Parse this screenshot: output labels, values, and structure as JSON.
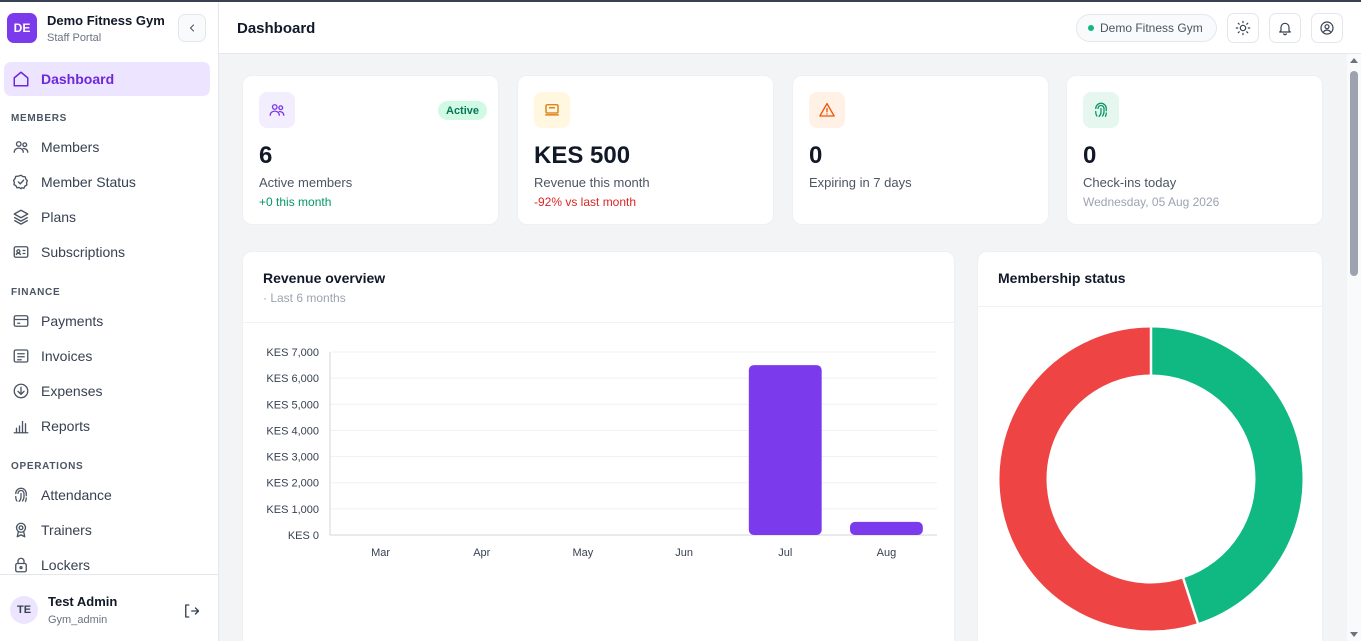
{
  "brand": {
    "initials": "DE",
    "name": "Demo Fitness Gym",
    "subtitle": "Staff Portal"
  },
  "nav": {
    "dashboard": "Dashboard",
    "sections": {
      "members": "MEMBERS",
      "finance": "FINANCE",
      "operations": "OPERATIONS"
    },
    "members_items": [
      "Members",
      "Member Status",
      "Plans",
      "Subscriptions"
    ],
    "finance_items": [
      "Payments",
      "Invoices",
      "Expenses",
      "Reports"
    ],
    "operations_items": [
      "Attendance",
      "Trainers",
      "Lockers"
    ]
  },
  "user": {
    "initials": "TE",
    "name": "Test Admin",
    "role": "Gym_admin"
  },
  "header": {
    "title": "Dashboard",
    "gym": "Demo Fitness Gym"
  },
  "stats": [
    {
      "value": "6",
      "label": "Active members",
      "sub": "+0 this month",
      "badge": "Active"
    },
    {
      "value": "KES 500",
      "label": "Revenue this month",
      "sub": "-92% vs last month"
    },
    {
      "value": "0",
      "label": "Expiring in 7 days"
    },
    {
      "value": "0",
      "label": "Check-ins today",
      "sub": "Wednesday, 05 Aug 2026"
    }
  ],
  "revenue_panel": {
    "title": "Revenue overview",
    "subtitle": "· Last 6 months"
  },
  "membership_panel": {
    "title": "Membership status"
  },
  "colors": {
    "accent": "#7c3aed",
    "success": "#10b981",
    "danger": "#ef4444"
  },
  "chart_data": [
    {
      "type": "bar",
      "title": "Revenue overview",
      "categories": [
        "Mar",
        "Apr",
        "May",
        "Jun",
        "Jul",
        "Aug"
      ],
      "values": [
        0,
        0,
        0,
        0,
        6500,
        500
      ],
      "ylim": [
        0,
        7000
      ],
      "yticks": [
        "KES 0",
        "KES 1,000",
        "KES 2,000",
        "KES 3,000",
        "KES 4,000",
        "KES 5,000",
        "KES 6,000",
        "KES 7,000"
      ],
      "ytick_values": [
        0,
        1000,
        2000,
        3000,
        4000,
        5000,
        6000,
        7000
      ],
      "grid": true,
      "bar_color": "#7c3aed"
    },
    {
      "type": "pie",
      "title": "Membership status",
      "values": [
        45,
        55
      ],
      "colors": [
        "#10b981",
        "#ef4444"
      ]
    }
  ]
}
